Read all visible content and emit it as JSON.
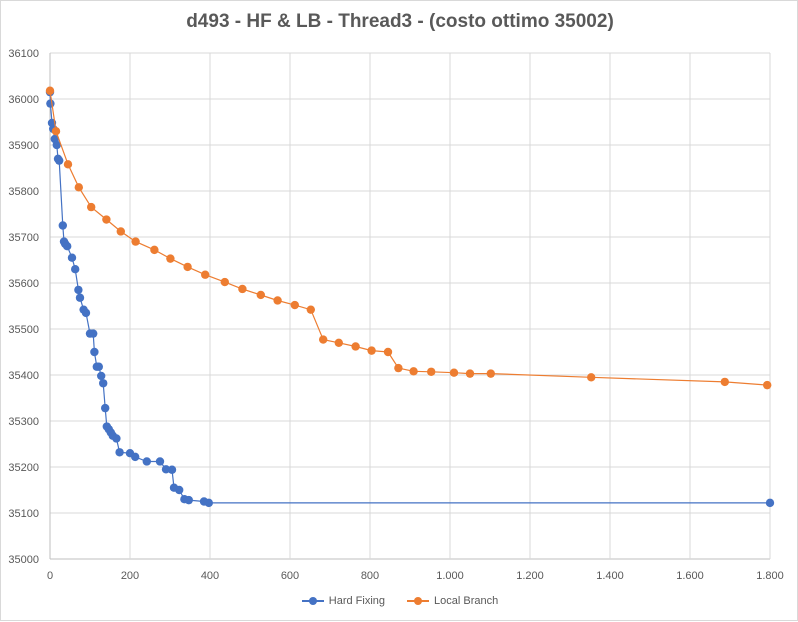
{
  "chart_data": {
    "type": "scatter",
    "title": "d493 - HF & LB - Thread3  - (costo ottimo 35002)",
    "xlabel": "",
    "ylabel": "",
    "xlim": [
      0,
      1800
    ],
    "ylim": [
      35000,
      36100
    ],
    "x_ticks": [
      0,
      200,
      400,
      600,
      800,
      1000,
      1200,
      1400,
      1600,
      1800
    ],
    "x_tick_labels": [
      "0",
      "200",
      "400",
      "600",
      "800",
      "1.000",
      "1.200",
      "1.400",
      "1.600",
      "1.800"
    ],
    "y_ticks": [
      35000,
      35100,
      35200,
      35300,
      35400,
      35500,
      35600,
      35700,
      35800,
      35900,
      36000,
      36100
    ],
    "y_tick_labels": [
      "35000",
      "35100",
      "35200",
      "35300",
      "35400",
      "35500",
      "35600",
      "35700",
      "35800",
      "35900",
      "36000",
      "36100"
    ],
    "grid": true,
    "legend_position": "bottom",
    "series": [
      {
        "name": "Hard Fixing",
        "color": "#4472c4",
        "points": [
          [
            0,
            36015
          ],
          [
            1,
            35990
          ],
          [
            5,
            35948
          ],
          [
            8,
            35935
          ],
          [
            12,
            35913
          ],
          [
            17,
            35900
          ],
          [
            20,
            35870
          ],
          [
            23,
            35866
          ],
          [
            32,
            35725
          ],
          [
            35,
            35690
          ],
          [
            38,
            35685
          ],
          [
            43,
            35680
          ],
          [
            55,
            35655
          ],
          [
            63,
            35630
          ],
          [
            71,
            35585
          ],
          [
            75,
            35568
          ],
          [
            84,
            35542
          ],
          [
            90,
            35535
          ],
          [
            100,
            35490
          ],
          [
            108,
            35490
          ],
          [
            111,
            35450
          ],
          [
            117,
            35418
          ],
          [
            122,
            35418
          ],
          [
            128,
            35398
          ],
          [
            133,
            35382
          ],
          [
            138,
            35328
          ],
          [
            142,
            35288
          ],
          [
            147,
            35282
          ],
          [
            152,
            35275
          ],
          [
            157,
            35268
          ],
          [
            166,
            35262
          ],
          [
            174,
            35232
          ],
          [
            200,
            35230
          ],
          [
            213,
            35222
          ],
          [
            242,
            35212
          ],
          [
            275,
            35212
          ],
          [
            290,
            35195
          ],
          [
            305,
            35194
          ],
          [
            310,
            35155
          ],
          [
            323,
            35150
          ],
          [
            336,
            35130
          ],
          [
            347,
            35128
          ],
          [
            385,
            35125
          ],
          [
            397,
            35122
          ],
          [
            1800,
            35122
          ]
        ]
      },
      {
        "name": "Local Branch",
        "color": "#ed7d31",
        "points": [
          [
            0,
            36018
          ],
          [
            15,
            35930
          ],
          [
            45,
            35858
          ],
          [
            72,
            35808
          ],
          [
            103,
            35765
          ],
          [
            141,
            35738
          ],
          [
            177,
            35712
          ],
          [
            214,
            35690
          ],
          [
            261,
            35672
          ],
          [
            301,
            35653
          ],
          [
            344,
            35635
          ],
          [
            388,
            35618
          ],
          [
            437,
            35602
          ],
          [
            481,
            35587
          ],
          [
            527,
            35574
          ],
          [
            569,
            35562
          ],
          [
            612,
            35552
          ],
          [
            652,
            35542
          ],
          [
            683,
            35477
          ],
          [
            722,
            35470
          ],
          [
            764,
            35462
          ],
          [
            804,
            35453
          ],
          [
            845,
            35450
          ],
          [
            871,
            35415
          ],
          [
            909,
            35408
          ],
          [
            953,
            35407
          ],
          [
            1010,
            35405
          ],
          [
            1050,
            35403
          ],
          [
            1102,
            35403
          ],
          [
            1353,
            35395
          ],
          [
            1687,
            35385
          ],
          [
            1793,
            35378
          ]
        ]
      }
    ]
  }
}
